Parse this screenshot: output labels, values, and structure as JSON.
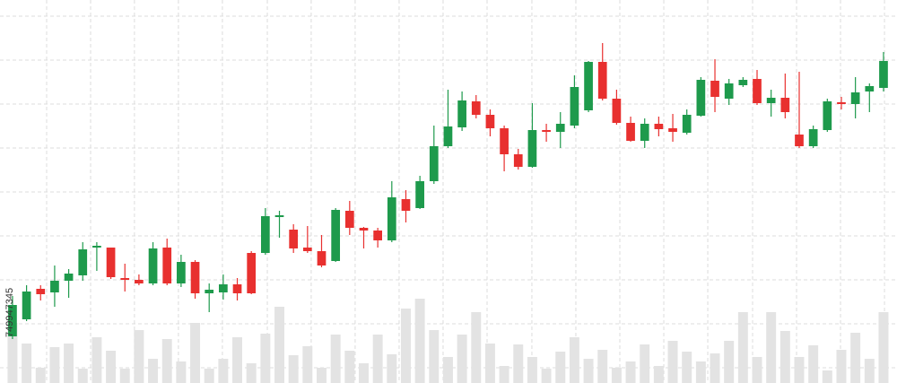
{
  "chart_data": {
    "type": "candlestick",
    "watermark": "749947345",
    "x": [
      0,
      1,
      2,
      3,
      4,
      5,
      6,
      7,
      8,
      9,
      10,
      11,
      12,
      13,
      14,
      15,
      16,
      17,
      18,
      19,
      20,
      21,
      22,
      23,
      24,
      25,
      26,
      27,
      28,
      29,
      30,
      31,
      32,
      33,
      34,
      35,
      36,
      37,
      38,
      39,
      40,
      41,
      42,
      43,
      44,
      45,
      46,
      47,
      48,
      49,
      50,
      51,
      52,
      53,
      54,
      55,
      56,
      57,
      58,
      59,
      60,
      61,
      62
    ],
    "open": [
      52,
      71,
      105,
      101,
      114,
      120,
      151,
      151,
      117,
      115,
      111,
      151,
      111,
      135,
      100,
      101,
      110,
      145,
      145,
      185,
      171,
      151,
      147,
      136,
      192,
      173,
      170,
      159,
      205,
      195,
      225,
      264,
      285,
      314,
      299,
      284,
      255,
      241,
      282,
      280,
      287,
      304,
      358,
      317,
      290,
      270,
      289,
      284,
      279,
      298,
      337,
      317,
      332,
      339,
      312,
      318,
      277,
      264,
      282,
      313,
      311,
      325,
      329
    ],
    "high": [
      97,
      109,
      109,
      131,
      127,
      157,
      157,
      151,
      133,
      121,
      157,
      161,
      143,
      137,
      111,
      121,
      117,
      147,
      195,
      192,
      177,
      175,
      165,
      195,
      203,
      174,
      173,
      225,
      215,
      231,
      287,
      327,
      325,
      321,
      305,
      287,
      261,
      312,
      289,
      302,
      343,
      359,
      379,
      327,
      297,
      295,
      297,
      300,
      305,
      341,
      361,
      339,
      341,
      349,
      327,
      345,
      347,
      287,
      317,
      319,
      341,
      334,
      369
    ],
    "low": [
      49,
      69,
      92,
      85,
      95,
      114,
      125,
      116,
      102,
      109,
      109,
      109,
      107,
      94,
      79,
      93,
      92,
      99,
      143,
      162,
      145,
      145,
      129,
      135,
      165,
      150,
      151,
      157,
      179,
      194,
      222,
      262,
      281,
      295,
      275,
      236,
      238,
      240,
      269,
      262,
      284,
      302,
      315,
      288,
      269,
      262,
      275,
      269,
      277,
      297,
      302,
      310,
      330,
      310,
      297,
      295,
      262,
      262,
      280,
      305,
      295,
      302,
      325
    ],
    "close": [
      87,
      102,
      99,
      114,
      122,
      149,
      153,
      118,
      115,
      111,
      150,
      111,
      135,
      100,
      104,
      110,
      100,
      100,
      186,
      187,
      150,
      147,
      131,
      193,
      173,
      170,
      159,
      207,
      192,
      225,
      264,
      286,
      315,
      299,
      284,
      255,
      241,
      282,
      280,
      289,
      330,
      358,
      317,
      290,
      270,
      289,
      283,
      280,
      299,
      338,
      319,
      334,
      338,
      312,
      318,
      302,
      264,
      283,
      314,
      311,
      324,
      331,
      359
    ],
    "up_color": "#1e9a4c",
    "down_color": "#e8302f",
    "volume": {
      "axis": "y2",
      "color": "#e3e3e3",
      "values": [
        67,
        44,
        17,
        40,
        44,
        16,
        51,
        36,
        16,
        59,
        27,
        49,
        24,
        67,
        16,
        27,
        51,
        22,
        55,
        85,
        31,
        41,
        17,
        54,
        36,
        22,
        54,
        32,
        83,
        94,
        59,
        29,
        54,
        79,
        44,
        19,
        43,
        29,
        16,
        35,
        51,
        27,
        37,
        17,
        24,
        43,
        19,
        47,
        35,
        24,
        33,
        47,
        79,
        29,
        79,
        58,
        29,
        42,
        14,
        37,
        56,
        27,
        79
      ]
    },
    "xlim": [
      -0.89,
      62.96
    ],
    "ylim": [
      0,
      427
    ],
    "y2lim": [
      0,
      427
    ],
    "xticks": [
      2.43,
      5.56,
      8.68,
      11.81,
      14.94,
      18.14,
      21.26,
      24.39,
      27.52,
      30.65,
      33.78,
      36.97,
      40.1,
      43.23,
      46.36,
      49.49,
      52.68,
      55.81,
      58.94,
      62.07
    ],
    "yticks": [
      17,
      66,
      115,
      164,
      213,
      262,
      311,
      360,
      409
    ],
    "grid": true
  }
}
